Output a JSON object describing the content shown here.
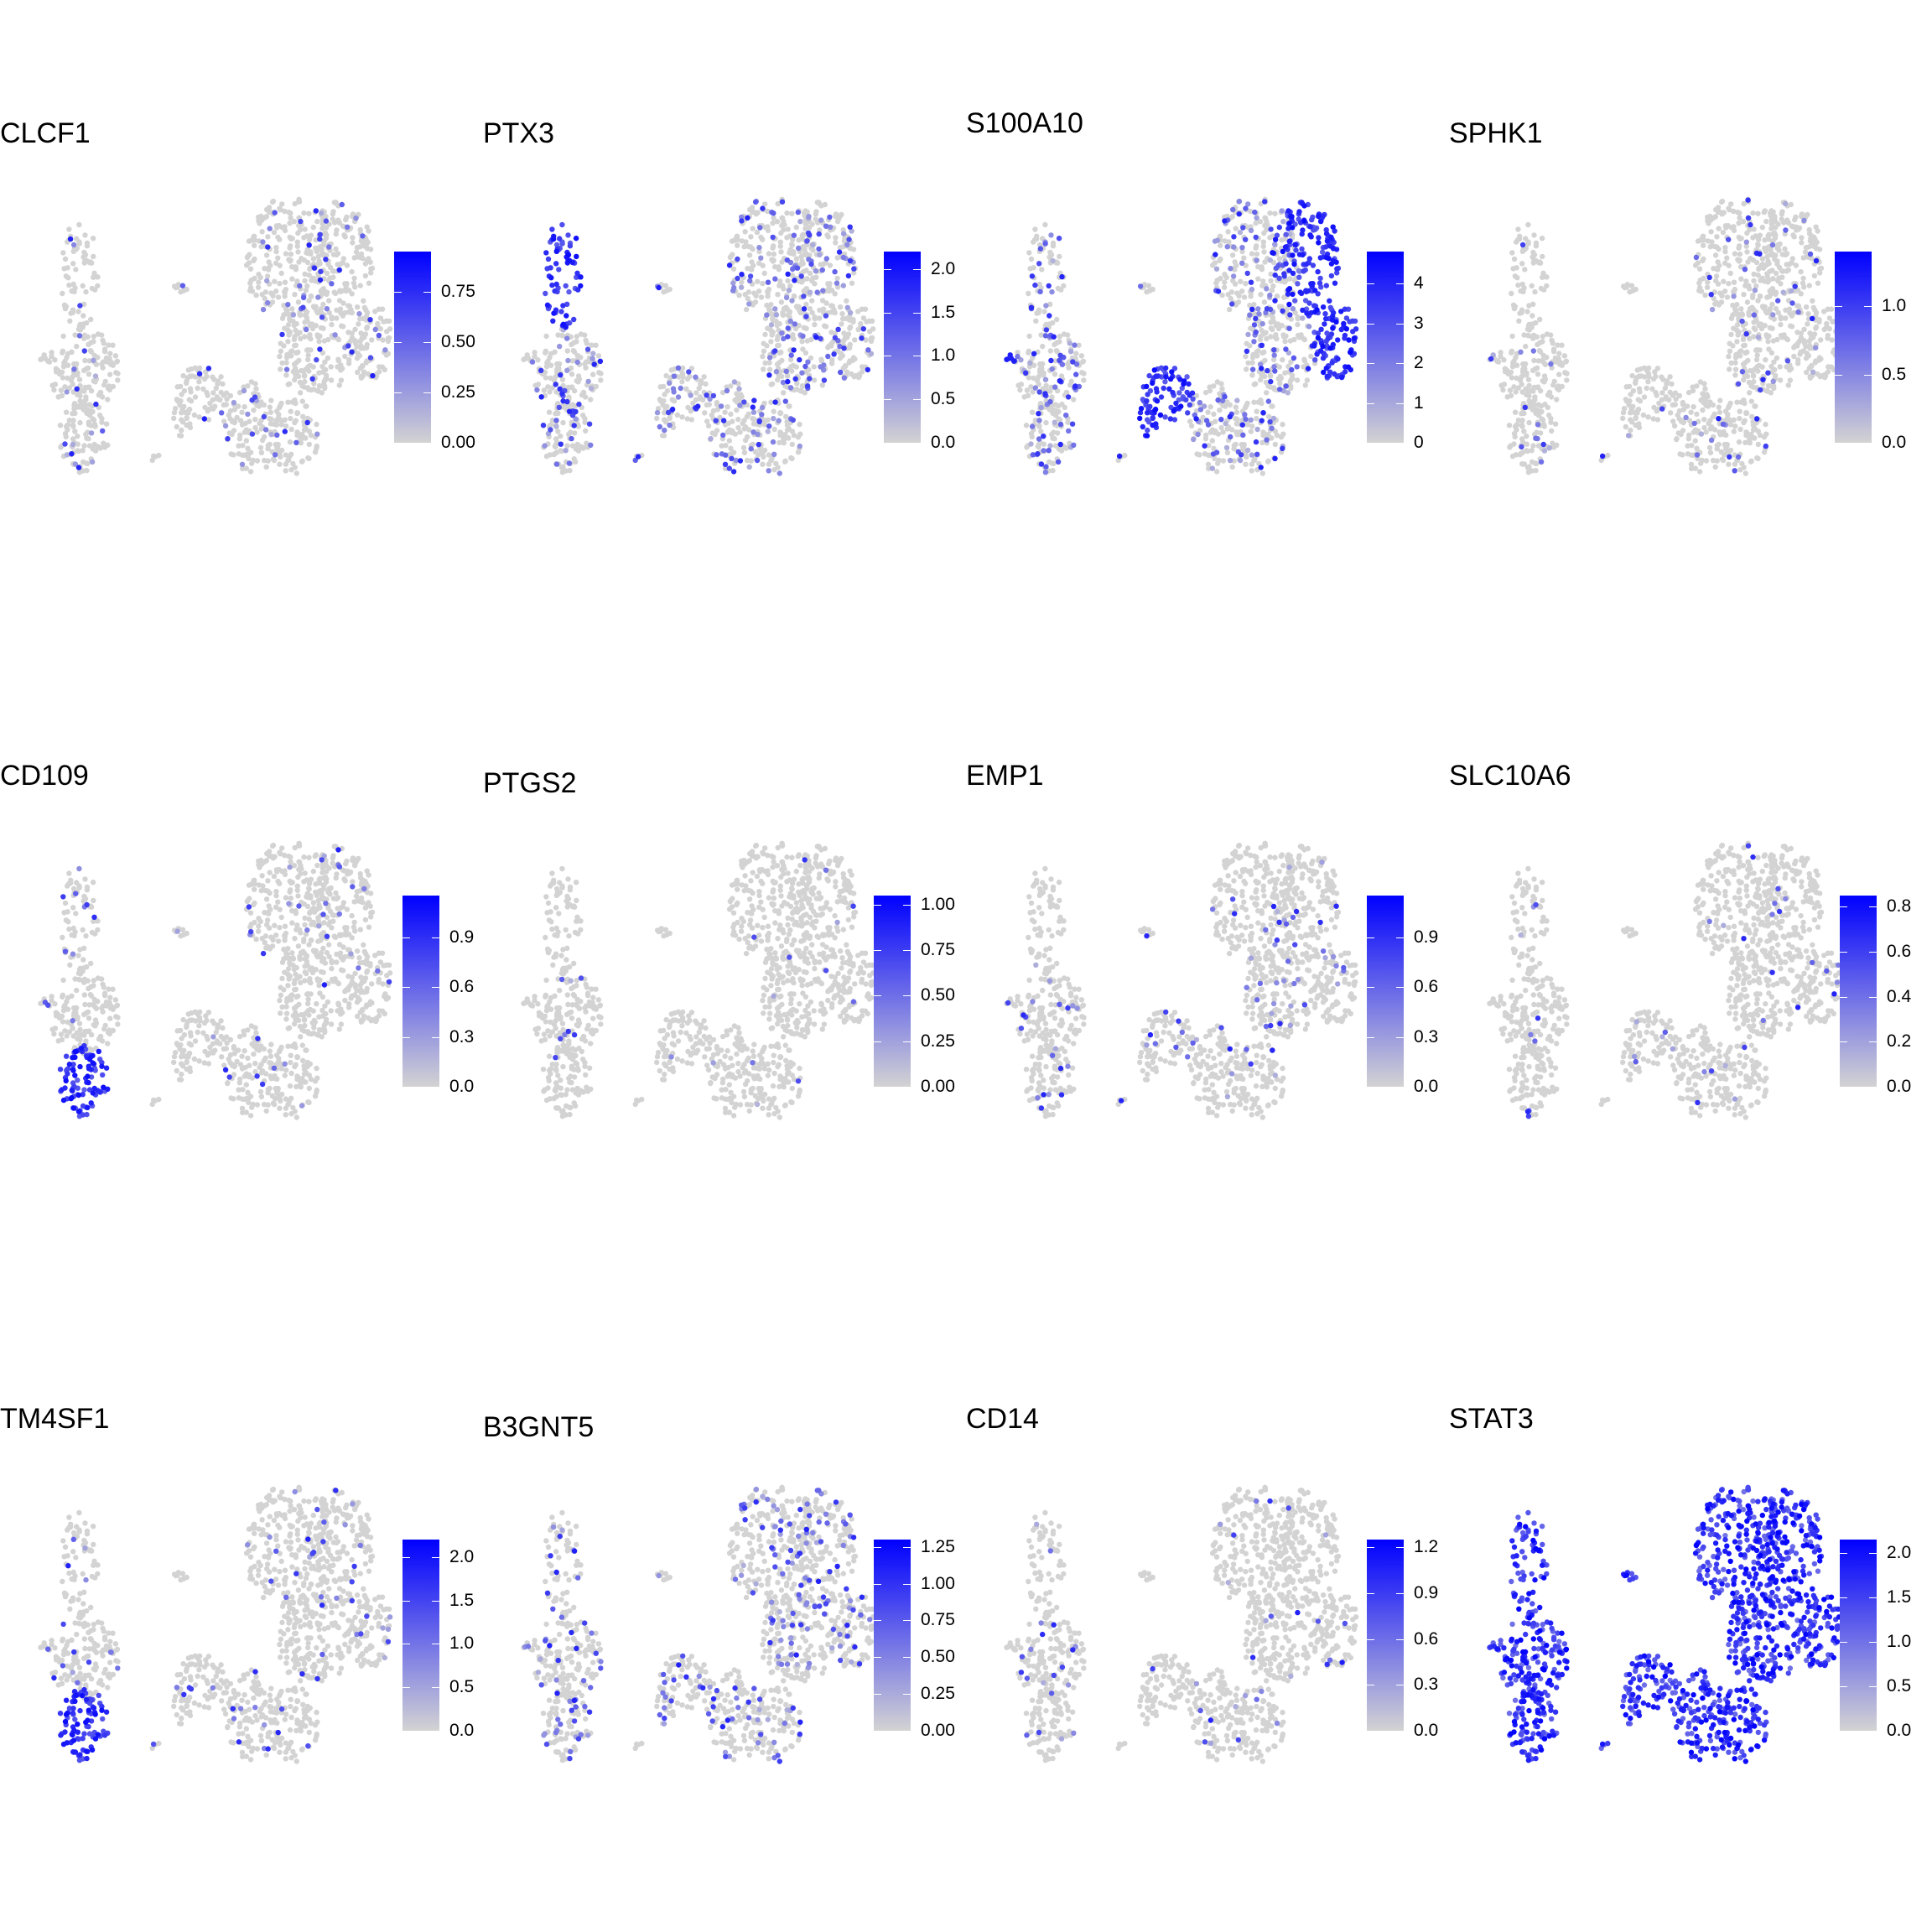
{
  "chart_data": [
    {
      "type": "scatter",
      "title": "CLCF1",
      "legend_ticks": [
        "0.75",
        "0.50",
        "0.25",
        "0.00"
      ],
      "legend_values": [
        0.75,
        0.5,
        0.25,
        0.0
      ],
      "value_range": [
        0,
        0.95
      ],
      "expression_level": 0.06,
      "high_regions": []
    },
    {
      "type": "scatter",
      "title": "PTX3",
      "legend_ticks": [
        "2.0",
        "1.5",
        "1.0",
        "0.5",
        "0.0"
      ],
      "legend_values": [
        2.0,
        1.5,
        1.0,
        0.5,
        0.0
      ],
      "value_range": [
        0,
        2.2
      ],
      "expression_level": 0.22,
      "high_regions": [
        "left-top"
      ]
    },
    {
      "type": "scatter",
      "title": "S100A10",
      "legend_ticks": [
        "4",
        "3",
        "2",
        "1",
        "0"
      ],
      "legend_values": [
        4,
        3,
        2,
        1,
        0
      ],
      "value_range": [
        0,
        4.8
      ],
      "expression_level": 0.25,
      "high_regions": [
        "main-top-right",
        "main-right",
        "left-blob",
        "outer-left"
      ]
    },
    {
      "type": "scatter",
      "title": "SPHK1",
      "legend_ticks": [
        "1.0",
        "0.5",
        "0.0"
      ],
      "legend_values": [
        1.0,
        0.5,
        0.0
      ],
      "value_range": [
        0,
        1.4
      ],
      "expression_level": 0.05,
      "high_regions": []
    },
    {
      "type": "scatter",
      "title": "CD109",
      "legend_ticks": [
        "0.9",
        "0.6",
        "0.3",
        "0.0"
      ],
      "legend_values": [
        0.9,
        0.6,
        0.3,
        0.0
      ],
      "value_range": [
        0,
        1.15
      ],
      "expression_level": 0.04,
      "high_regions": [
        "left-bottom"
      ]
    },
    {
      "type": "scatter",
      "title": "PTGS2",
      "legend_ticks": [
        "1.00",
        "0.75",
        "0.50",
        "0.25",
        "0.00"
      ],
      "legend_values": [
        1.0,
        0.75,
        0.5,
        0.25,
        0.0
      ],
      "value_range": [
        0,
        1.05
      ],
      "expression_level": 0.02,
      "high_regions": []
    },
    {
      "type": "scatter",
      "title": "EMP1",
      "legend_ticks": [
        "0.9",
        "0.6",
        "0.3",
        "0.0"
      ],
      "legend_values": [
        0.9,
        0.6,
        0.3,
        0.0
      ],
      "value_range": [
        0,
        1.15
      ],
      "expression_level": 0.06,
      "high_regions": []
    },
    {
      "type": "scatter",
      "title": "SLC10A6",
      "legend_ticks": [
        "0.8",
        "0.6",
        "0.4",
        "0.2",
        "0.0"
      ],
      "legend_values": [
        0.8,
        0.6,
        0.4,
        0.2,
        0.0
      ],
      "value_range": [
        0,
        0.85
      ],
      "expression_level": 0.03,
      "high_regions": []
    },
    {
      "type": "scatter",
      "title": "TM4SF1",
      "legend_ticks": [
        "2.0",
        "1.5",
        "1.0",
        "0.5",
        "0.0"
      ],
      "legend_values": [
        2.0,
        1.5,
        1.0,
        0.5,
        0.0
      ],
      "value_range": [
        0,
        2.2
      ],
      "expression_level": 0.04,
      "high_regions": [
        "left-bottom"
      ]
    },
    {
      "type": "scatter",
      "title": "B3GNT5",
      "legend_ticks": [
        "1.25",
        "1.00",
        "0.75",
        "0.50",
        "0.25",
        "0.00"
      ],
      "legend_values": [
        1.25,
        1.0,
        0.75,
        0.5,
        0.25,
        0.0
      ],
      "value_range": [
        0,
        1.3
      ],
      "expression_level": 0.18,
      "high_regions": []
    },
    {
      "type": "scatter",
      "title": "CD14",
      "legend_ticks": [
        "1.2",
        "0.9",
        "0.6",
        "0.3",
        "0.0"
      ],
      "legend_values": [
        1.2,
        0.9,
        0.6,
        0.3,
        0.0
      ],
      "value_range": [
        0,
        1.25
      ],
      "expression_level": 0.03,
      "high_regions": []
    },
    {
      "type": "scatter",
      "title": "STAT3",
      "legend_ticks": [
        "2.0",
        "1.5",
        "1.0",
        "0.5",
        "0.0"
      ],
      "legend_values": [
        2.0,
        1.5,
        1.0,
        0.5,
        0.0
      ],
      "value_range": [
        0,
        2.15
      ],
      "expression_level": 0.85,
      "high_regions": [
        "all"
      ]
    }
  ],
  "colors": {
    "low": "#d3d3d3",
    "high": "#0000ff"
  }
}
